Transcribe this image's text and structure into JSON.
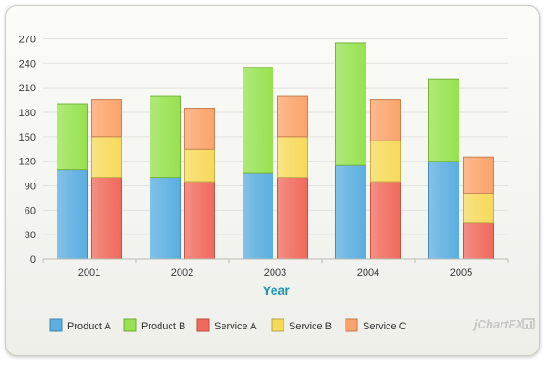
{
  "chart_data": {
    "type": "bar",
    "stacked": true,
    "categories": [
      "2001",
      "2002",
      "2003",
      "2004",
      "2005"
    ],
    "xlabel": "Year",
    "ylabel": "",
    "ylim": [
      0,
      270
    ],
    "yticks": [
      0,
      30,
      60,
      90,
      120,
      150,
      180,
      210,
      240,
      270
    ],
    "grid": true,
    "legend": "bottom",
    "stacks": [
      {
        "stack": "Product",
        "series": [
          {
            "name": "Product A",
            "color": "#5aaee0",
            "values": [
              110,
              100,
              105,
              115,
              120
            ]
          },
          {
            "name": "Product B",
            "color": "#96e24f",
            "values": [
              80,
              100,
              130,
              150,
              100
            ]
          }
        ]
      },
      {
        "stack": "Service",
        "series": [
          {
            "name": "Service A",
            "color": "#f06a5c",
            "values": [
              100,
              95,
              100,
              95,
              45
            ]
          },
          {
            "name": "Service B",
            "color": "#f7d95a",
            "values": [
              50,
              40,
              50,
              50,
              35
            ]
          },
          {
            "name": "Service C",
            "color": "#fba36a",
            "values": [
              45,
              50,
              50,
              50,
              45
            ]
          }
        ]
      }
    ]
  },
  "branding": {
    "logo_text": "jChartFX"
  }
}
